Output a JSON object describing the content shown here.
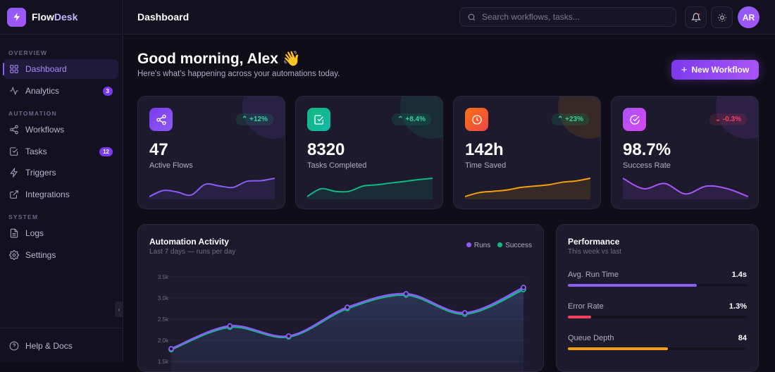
{
  "brand": {
    "name_a": "Flow",
    "name_b": "Desk"
  },
  "sidebar": {
    "sections": [
      "OVERVIEW",
      "AUTOMATION",
      "SYSTEM"
    ],
    "items": [
      {
        "label": "Dashboard",
        "icon": "grid-icon",
        "active": true
      },
      {
        "label": "Analytics",
        "icon": "activity-icon",
        "badge": "3"
      },
      {
        "label": "Workflows",
        "icon": "share-icon"
      },
      {
        "label": "Tasks",
        "icon": "check-square-icon",
        "badge": "12"
      },
      {
        "label": "Triggers",
        "icon": "bolt-icon"
      },
      {
        "label": "Integrations",
        "icon": "external-link-icon"
      },
      {
        "label": "Logs",
        "icon": "file-icon"
      },
      {
        "label": "Settings",
        "icon": "gear-icon"
      }
    ],
    "help": "Help & Docs"
  },
  "header": {
    "title": "Dashboard",
    "search_placeholder": "Search workflows, tasks...",
    "avatar": "AR"
  },
  "greeting": {
    "title": "Good morning, Alex 👋",
    "subtitle": "Here's what's happening across your automations today.",
    "new_button": "New Workflow"
  },
  "stats": [
    {
      "value": "47",
      "label": "Active Flows",
      "trend": "+12%",
      "dir": "up",
      "color": "#8b5cf6",
      "icon": "share-icon",
      "spark": [
        2,
        4,
        3.5,
        2.5,
        6,
        5.5,
        5,
        7,
        7.2,
        8
      ]
    },
    {
      "value": "8320",
      "label": "Tasks Completed",
      "trend": "+8.4%",
      "dir": "up",
      "color": "#10b981",
      "icon": "check-square-icon",
      "spark": [
        1,
        4,
        3,
        3,
        5,
        5.5,
        6.2,
        6.8,
        7.5,
        8
      ]
    },
    {
      "value": "142h",
      "label": "Time Saved",
      "trend": "+23%",
      "dir": "up",
      "color": "#f59e0b",
      "icon": "clock-icon",
      "spark": [
        1,
        2.5,
        3,
        3.5,
        4.5,
        5,
        5.5,
        6.5,
        7,
        8
      ]
    },
    {
      "value": "98.7%",
      "label": "Success Rate",
      "trend": "-0.3%",
      "dir": "down",
      "color": "#a855f7",
      "icon": "check-circle-icon",
      "spark": [
        8,
        4,
        6,
        2,
        5,
        4,
        1
      ]
    }
  ],
  "activity": {
    "title": "Automation Activity",
    "subtitle": "Last 7 days — runs per day",
    "chart_data": {
      "type": "line",
      "x": [
        1,
        2,
        3,
        4,
        5,
        6,
        7
      ],
      "y_ticks": [
        "1.5k",
        "2.0k",
        "2.5k",
        "3.0k",
        "3.5k"
      ],
      "ylim": [
        1500,
        3500
      ],
      "grid": true,
      "legend": "top-right",
      "series": [
        {
          "name": "Runs",
          "color": "#8b5cf6",
          "values": [
            1800,
            2340,
            2100,
            2780,
            3100,
            2650,
            3250
          ]
        },
        {
          "name": "Success",
          "color": "#10b981",
          "values": [
            1780,
            2310,
            2080,
            2750,
            3070,
            2620,
            3200
          ]
        }
      ]
    }
  },
  "performance": {
    "title": "Performance",
    "subtitle": "This week vs last",
    "metrics": [
      {
        "label": "Avg. Run Time",
        "value": "1.4s",
        "percent": 72,
        "color": "#8b5cf6"
      },
      {
        "label": "Error Rate",
        "value": "1.3%",
        "percent": 13,
        "color": "#f43f5e"
      },
      {
        "label": "Queue Depth",
        "value": "84",
        "percent": 56,
        "color": "#f59e0b"
      }
    ]
  }
}
